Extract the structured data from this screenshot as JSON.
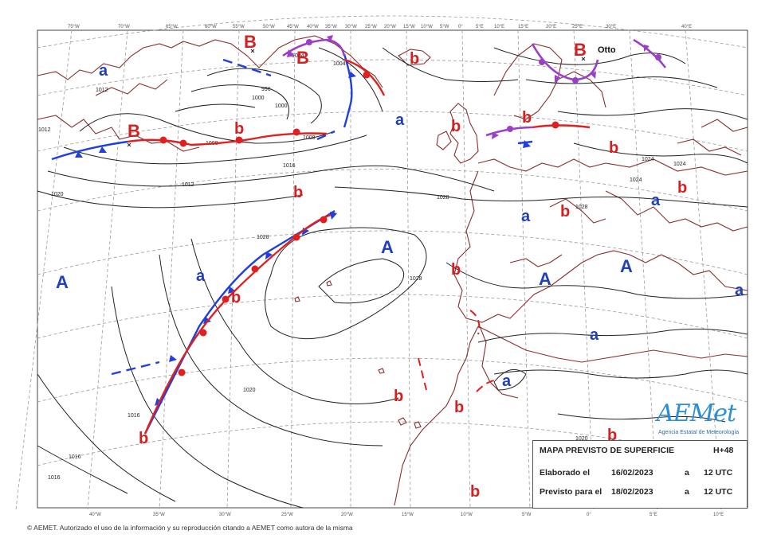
{
  "map": {
    "pressure_systems": [
      {
        "label": "B",
        "kind": "low",
        "color": "#d42020"
      },
      {
        "label": "B",
        "kind": "low",
        "color": "#d42020"
      },
      {
        "label": "B",
        "kind": "low",
        "color": "#d42020"
      },
      {
        "label": "B",
        "kind": "low",
        "color": "#d42020"
      },
      {
        "label": "A",
        "kind": "high",
        "color": "#1f3fbf"
      },
      {
        "label": "A",
        "kind": "high",
        "color": "#1f3fbf"
      },
      {
        "label": "A",
        "kind": "high",
        "color": "#1f3fbf"
      },
      {
        "label": "A",
        "kind": "high",
        "color": "#1f3fbf"
      }
    ],
    "minor_systems": [
      {
        "label": "a",
        "color": "#1f3fbf"
      },
      {
        "label": "a",
        "color": "#1f3fbf"
      },
      {
        "label": "a",
        "color": "#1f3fbf"
      },
      {
        "label": "a",
        "color": "#1f3fbf"
      },
      {
        "label": "a",
        "color": "#1f3fbf"
      },
      {
        "label": "a",
        "color": "#1f3fbf"
      },
      {
        "label": "a",
        "color": "#1f3fbf"
      },
      {
        "label": "a",
        "color": "#1f3fbf"
      },
      {
        "label": "b",
        "color": "#d42020"
      },
      {
        "label": "b",
        "color": "#d42020"
      },
      {
        "label": "b",
        "color": "#d42020"
      },
      {
        "label": "b",
        "color": "#d42020"
      },
      {
        "label": "b",
        "color": "#d42020"
      },
      {
        "label": "b",
        "color": "#d42020"
      },
      {
        "label": "b",
        "color": "#d42020"
      },
      {
        "label": "b",
        "color": "#d42020"
      },
      {
        "label": "b",
        "color": "#d42020"
      },
      {
        "label": "b",
        "color": "#d42020"
      },
      {
        "label": "b",
        "color": "#d42020"
      },
      {
        "label": "b",
        "color": "#d42020"
      },
      {
        "label": "b",
        "color": "#d42020"
      },
      {
        "label": "b",
        "color": "#d42020"
      },
      {
        "label": "b",
        "color": "#d42020"
      }
    ],
    "storm_name": "Otto",
    "isobar_values": [
      "1012",
      "1020",
      "1028",
      "996",
      "1000",
      "1008",
      "1016",
      "1024",
      "1028",
      "1028",
      "1028",
      "1020",
      "1016",
      "1016",
      "1024",
      "1004",
      "1004",
      "1000",
      "1012",
      "1008",
      "1020",
      "1024",
      "1016",
      "1012"
    ],
    "longitude_top": [
      "75°W",
      "70°W",
      "65°W",
      "60°W",
      "55°W",
      "50°W",
      "45°W",
      "40°W",
      "35°W",
      "30°W",
      "25°W",
      "20°W",
      "15°W",
      "10°W",
      "5°W",
      "0°",
      "5°E",
      "10°E",
      "15°E",
      "20°E",
      "25°E",
      "30°E",
      "40°E"
    ],
    "longitude_bottom": [
      "40°W",
      "35°W",
      "30°W",
      "25°W",
      "20°W",
      "15°W",
      "10°W",
      "5°W",
      "0°",
      "5°E",
      "10°E"
    ],
    "colors": {
      "coast": "#8a2f2f",
      "isobar": "#222222",
      "cold_front": "#1f3fdf",
      "warm_front": "#e02020",
      "occluded_front": "#9b3fc8",
      "graticule": "#9a9a9a"
    },
    "front_types": [
      "cold-front",
      "warm-front",
      "occluded-front",
      "trough"
    ]
  },
  "infobox": {
    "title": "MAPA PREVISTO DE SUPERFICIE",
    "horizon": "H+48",
    "row1_label": "Elaborado el",
    "row1_date": "16/02/2023",
    "row1_a": "a",
    "row1_time": "12 UTC",
    "row2_label": "Previsto para el",
    "row2_date": "18/02/2023",
    "row2_a": "a",
    "row2_time": "12 UTC"
  },
  "logo": {
    "brand": "AEMet",
    "subtitle": "Agencia Estatal de Meteorología"
  },
  "copyright": "© AEMET. Autorizado el uso de la información y su reproducción citando a AEMET como autora de la misma"
}
